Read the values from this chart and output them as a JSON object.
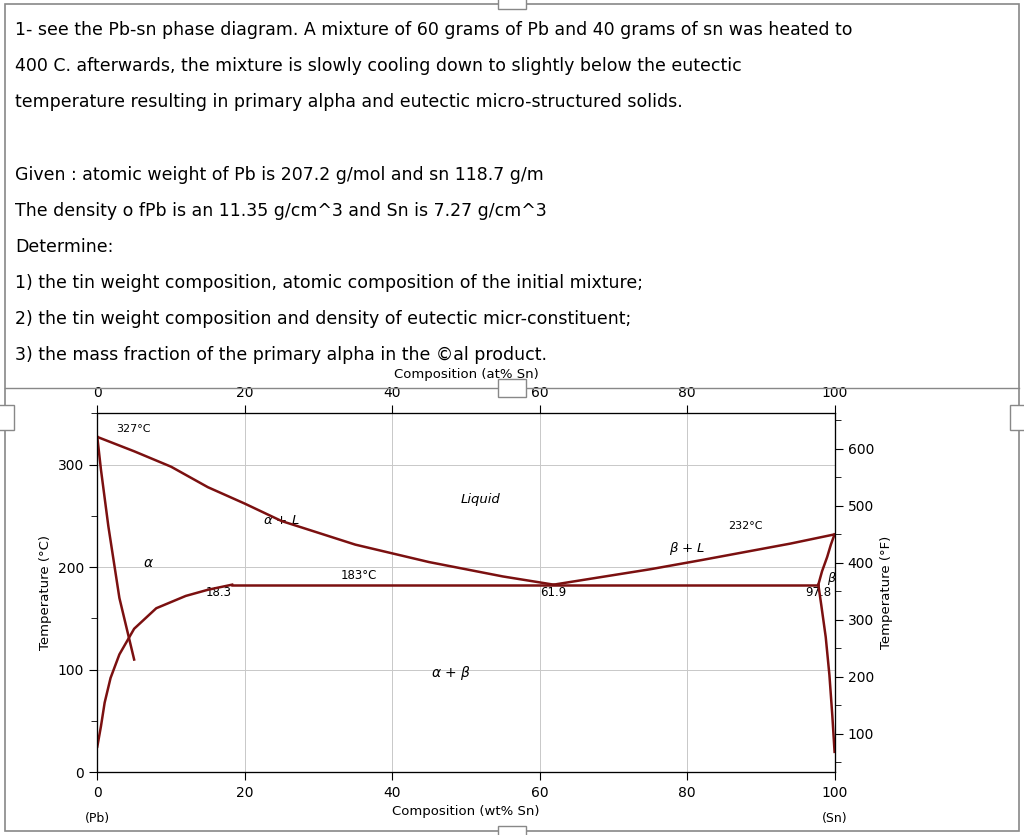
{
  "title_lines": [
    "1- see the Pb-sn phase diagram. A mixture of 60 grams of Pb and 40 grams of sn was heated to",
    "400 C. afterwards, the mixture is slowly cooling down to slightly below the eutectic",
    "temperature resulting in primary alpha and eutectic micro-structured solids.",
    "",
    "Given : atomic weight of Pb is 207.2 g/mol and sn 118.7 g/m",
    "The density o fPb is an 11.35 g/cm^3 and Sn is 7.27 g/cm^3",
    "Determine:",
    "1) the tin weight composition, atomic composition of the initial mixture;",
    "2) the tin weight composition and density of eutectic micr-constituent;",
    "3) the mass fraction of the primary alpha in the ©al product."
  ],
  "text_fontsize": 12.5,
  "diagram_top_xlabel": "Composition (at% Sn)",
  "diagram_bottom_xlabel": "Composition (wt% Sn)",
  "diagram_ylabel_left": "Temperature (°C)",
  "diagram_ylabel_right": "Temperature (°F)",
  "curve_color": "#7B1010",
  "grid_color": "#c8c8c8",
  "xticks_wt": [
    0,
    20,
    40,
    60,
    80,
    100
  ],
  "xticks_at": [
    0,
    20,
    40,
    60,
    80,
    100
  ],
  "yticks_C": [
    0,
    100,
    200,
    300
  ],
  "yticks_F": [
    100,
    200,
    300,
    400,
    500,
    600
  ],
  "liq_left_x": [
    0,
    5,
    10,
    15,
    20,
    25,
    35,
    45,
    55,
    61.9
  ],
  "liq_left_y": [
    327,
    313,
    298,
    278,
    262,
    245,
    222,
    205,
    191,
    183
  ],
  "liq_right_x": [
    61.9,
    68,
    75,
    82,
    88,
    94,
    98,
    100
  ],
  "liq_right_y": [
    183,
    190,
    198,
    207,
    215,
    223,
    229,
    232
  ],
  "alpha_solvus_x": [
    0,
    0.5,
    1.0,
    1.8,
    3,
    5,
    8,
    12,
    15,
    18.3
  ],
  "alpha_solvus_y": [
    25,
    45,
    68,
    92,
    115,
    140,
    160,
    172,
    178,
    183
  ],
  "beta_solvus_above_x": [
    97.8,
    98.3,
    99.0,
    99.5,
    100
  ],
  "beta_solvus_above_y": [
    183,
    196,
    210,
    222,
    232
  ],
  "beta_solvus_below_x": [
    97.8,
    98.2,
    98.8,
    99.3,
    99.7,
    100
  ],
  "beta_solvus_below_y": [
    183,
    163,
    132,
    95,
    55,
    20
  ],
  "eutectic_line_x": [
    18.3,
    97.8
  ],
  "eutectic_line_y": [
    183,
    183
  ],
  "pb_left_curve_x": [
    0,
    0.5,
    1.5,
    3,
    5
  ],
  "pb_left_curve_y": [
    327,
    295,
    240,
    170,
    110
  ]
}
